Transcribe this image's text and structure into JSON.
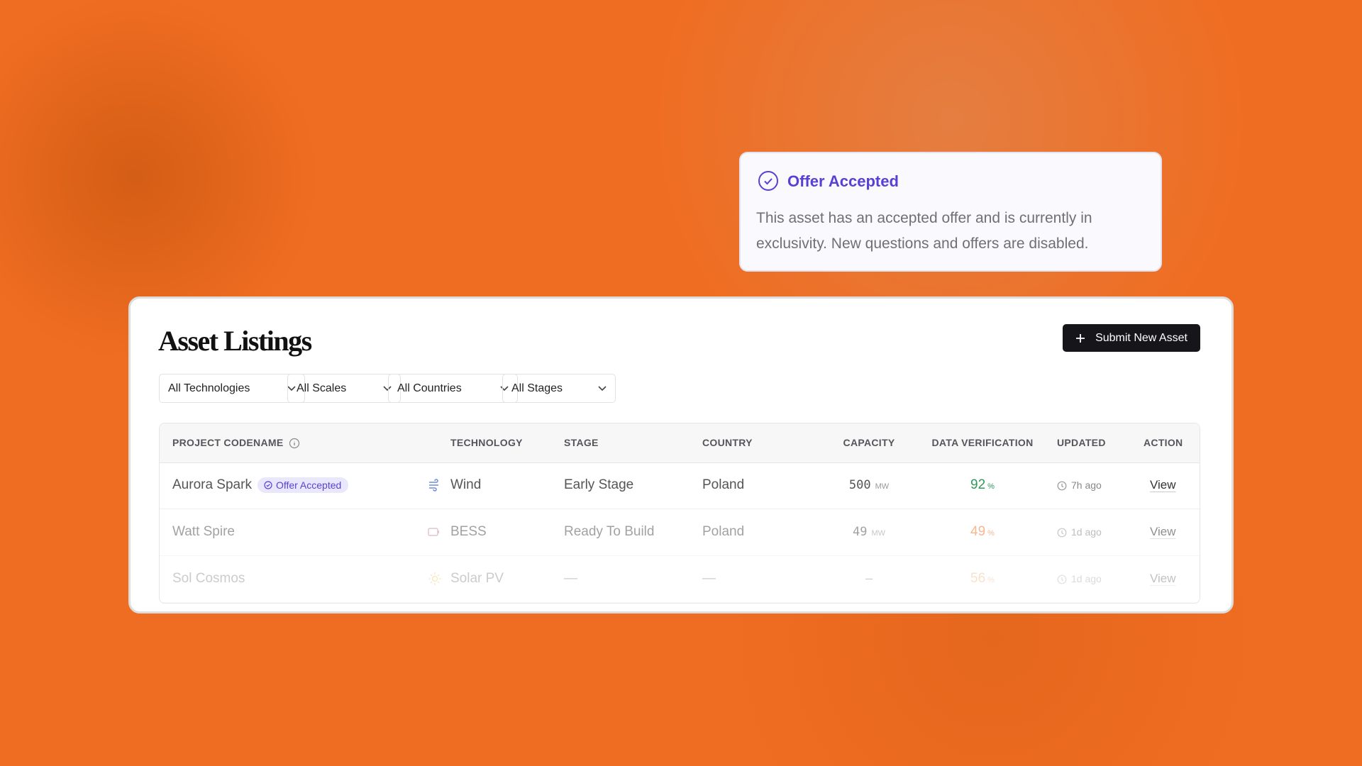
{
  "tooltip": {
    "title": "Offer Accepted",
    "body": "This asset has an accepted offer and is currently in exclusivity. New questions and offers are disabled."
  },
  "listing": {
    "title": "Asset Listings",
    "button": "Submit New Asset",
    "filters": [
      "All Technologies",
      "All Scales",
      "All Countries",
      "All Stages"
    ],
    "headers": [
      "PROJECT CODENAME",
      "TECHNOLOGY",
      "STAGE",
      "COUNTRY",
      "CAPACITY",
      "DATA VERIFICATION",
      "UPDATED",
      "ACTION"
    ],
    "rows": [
      {
        "codename": "Aurora Spark",
        "badge": "Offer Accepted",
        "technology": "Wind",
        "stage": "Early Stage",
        "country": "Poland",
        "capacity": "500",
        "capacity_unit": "MW",
        "verification": "92",
        "verification_unit": "%",
        "updated": "7h ago",
        "action": "View"
      },
      {
        "codename": "Watt Spire",
        "technology": "BESS",
        "stage": "Ready To Build",
        "country": "Poland",
        "capacity": "49",
        "capacity_unit": "MW",
        "verification": "49",
        "verification_unit": "%",
        "updated": "1d ago",
        "action": "View"
      },
      {
        "codename": "Sol Cosmos",
        "technology": "Solar PV",
        "stage": "—",
        "country": "—",
        "capacity": "—",
        "verification": "56",
        "verification_unit": "%",
        "updated": "1d ago",
        "action": "View"
      }
    ]
  }
}
